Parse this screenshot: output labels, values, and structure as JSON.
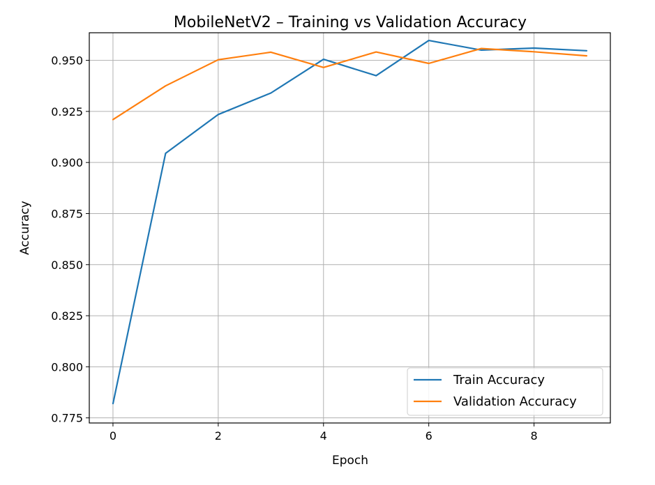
{
  "chart_data": {
    "type": "line",
    "title": "MobileNetV2 – Training vs Validation Accuracy",
    "xlabel": "Epoch",
    "ylabel": "Accuracy",
    "x": [
      0,
      1,
      2,
      3,
      4,
      5,
      6,
      7,
      8,
      9
    ],
    "xticks": [
      "0",
      "2",
      "4",
      "6",
      "8"
    ],
    "yticks": [
      "0.775",
      "0.800",
      "0.825",
      "0.850",
      "0.875",
      "0.900",
      "0.925",
      "0.950"
    ],
    "xlim": [
      -0.45,
      9.45
    ],
    "ylim": [
      0.7725,
      0.9635
    ],
    "grid": true,
    "legend_position": "lower-right",
    "series": [
      {
        "name": "Train Accuracy",
        "color": "#1f77b4",
        "values": [
          0.782,
          0.9045,
          0.9235,
          0.934,
          0.9505,
          0.9425,
          0.9597,
          0.955,
          0.956,
          0.9547
        ]
      },
      {
        "name": "Validation Accuracy",
        "color": "#ff7f0e",
        "values": [
          0.921,
          0.9375,
          0.9503,
          0.954,
          0.9465,
          0.9541,
          0.9485,
          0.9558,
          0.9542,
          0.9522
        ]
      }
    ]
  }
}
